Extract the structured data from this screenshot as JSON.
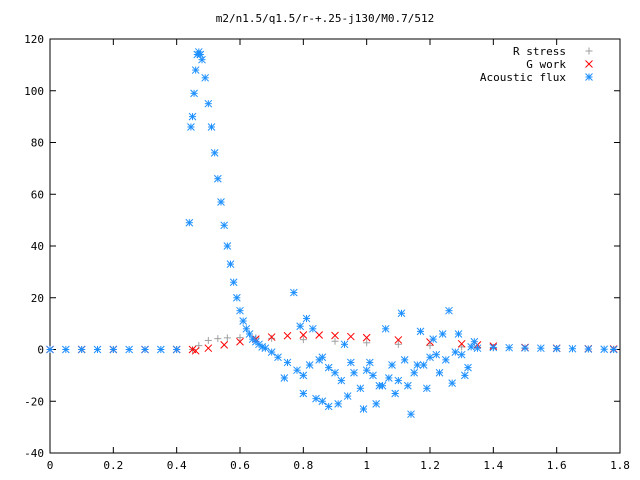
{
  "chart_data": {
    "type": "scatter",
    "title": "m2/n1.5/q1.5/r-+.25-j130/M0.7/512",
    "xlim": [
      0,
      1.8
    ],
    "ylim": [
      -40,
      120
    ],
    "xticks": [
      "0",
      "0.2",
      "0.4",
      "0.6",
      "0.8",
      "1",
      "1.2",
      "1.4",
      "1.6",
      "1.8"
    ],
    "yticks": [
      "-40",
      "-20",
      "0",
      "20",
      "40",
      "60",
      "80",
      "100",
      "120"
    ],
    "legend_position": "top-right",
    "grid": false,
    "series": [
      {
        "name": "R stress",
        "marker": "plus",
        "color": "#a0a0a0",
        "x": [
          0.0,
          0.1,
          0.2,
          0.3,
          0.4,
          0.45,
          0.47,
          0.5,
          0.53,
          0.56,
          0.6,
          0.65,
          0.7,
          0.8,
          0.9,
          1.0,
          1.1,
          1.2,
          1.3,
          1.35,
          1.4,
          1.5,
          1.6,
          1.7,
          1.78
        ],
        "y": [
          0,
          0,
          0,
          0,
          0,
          0,
          1.5,
          3.5,
          4.2,
          4.5,
          4.6,
          4.5,
          4.3,
          3.8,
          3.2,
          2.6,
          2.0,
          1.5,
          1.0,
          0.8,
          0.6,
          0.4,
          0.3,
          0.2,
          0.1
        ]
      },
      {
        "name": "G work",
        "marker": "cross",
        "color": "#ff0000",
        "x": [
          0.0,
          0.1,
          0.2,
          0.3,
          0.4,
          0.45,
          0.46,
          0.5,
          0.55,
          0.6,
          0.65,
          0.7,
          0.75,
          0.8,
          0.85,
          0.9,
          0.95,
          1.0,
          1.1,
          1.2,
          1.3,
          1.35,
          1.4,
          1.5,
          1.6,
          1.7,
          1.78
        ],
        "y": [
          0,
          0,
          0,
          0,
          0,
          0,
          -0.5,
          0.5,
          1.8,
          3.0,
          4.0,
          4.8,
          5.3,
          5.6,
          5.6,
          5.4,
          5.0,
          4.6,
          3.7,
          2.9,
          2.2,
          1.8,
          1.3,
          0.8,
          0.5,
          0.3,
          0.2
        ]
      },
      {
        "name": "Acoustic flux",
        "marker": "star",
        "color": "#1e90ff",
        "x": [
          0.0,
          0.05,
          0.1,
          0.15,
          0.2,
          0.25,
          0.3,
          0.35,
          0.4,
          0.44,
          0.445,
          0.45,
          0.455,
          0.46,
          0.465,
          0.47,
          0.475,
          0.48,
          0.49,
          0.5,
          0.51,
          0.52,
          0.53,
          0.54,
          0.55,
          0.56,
          0.57,
          0.58,
          0.59,
          0.6,
          0.61,
          0.62,
          0.63,
          0.64,
          0.65,
          0.66,
          0.67,
          0.68,
          0.7,
          0.72,
          0.75,
          0.78,
          0.8,
          0.82,
          0.85,
          0.88,
          0.9,
          0.92,
          0.95,
          0.98,
          1.0,
          1.02,
          1.05,
          1.08,
          1.1,
          1.12,
          1.15,
          1.18,
          1.2,
          1.22,
          1.25,
          1.28,
          1.3,
          1.33,
          1.35,
          1.4,
          1.45,
          1.5,
          1.55,
          1.6,
          1.65,
          1.7,
          1.75,
          1.78,
          0.77,
          0.8,
          0.83,
          0.86,
          0.91,
          0.96,
          1.03,
          1.07,
          1.13,
          1.16,
          1.24,
          1.27,
          1.31,
          0.74,
          0.79,
          0.84,
          0.88,
          0.94,
          0.99,
          1.04,
          1.09,
          1.14,
          1.19,
          1.23,
          1.29,
          1.32,
          0.81,
          0.86,
          0.93,
          1.01,
          1.06,
          1.11,
          1.17,
          1.21,
          1.26,
          1.34
        ],
        "y": [
          0,
          0,
          0,
          0,
          0,
          0,
          0,
          0,
          0,
          49,
          86,
          90,
          99,
          108,
          114,
          115,
          114,
          112,
          105,
          95,
          86,
          76,
          66,
          57,
          48,
          40,
          33,
          26,
          20,
          15,
          11,
          8,
          6,
          4,
          3,
          2,
          1,
          0.5,
          -1,
          -3,
          -5,
          -8,
          -10,
          -6,
          -4,
          -7,
          -9,
          -12,
          -5,
          -15,
          -8,
          -10,
          -14,
          -6,
          -12,
          -4,
          -9,
          -6,
          -3,
          -2,
          -4,
          -1,
          -2,
          1,
          0.5,
          0.8,
          0.7,
          0.6,
          0.5,
          0.4,
          0.3,
          0.2,
          0.1,
          0,
          22,
          -17,
          8,
          -20,
          -21,
          -9,
          -21,
          -11,
          -14,
          -6,
          6,
          -13,
          -10,
          -11,
          9,
          -19,
          -22,
          -18,
          -23,
          -14,
          -17,
          -25,
          -15,
          -9,
          6,
          -7,
          12,
          -3,
          2,
          -5,
          8,
          14,
          7,
          4,
          15,
          3
        ]
      }
    ]
  }
}
